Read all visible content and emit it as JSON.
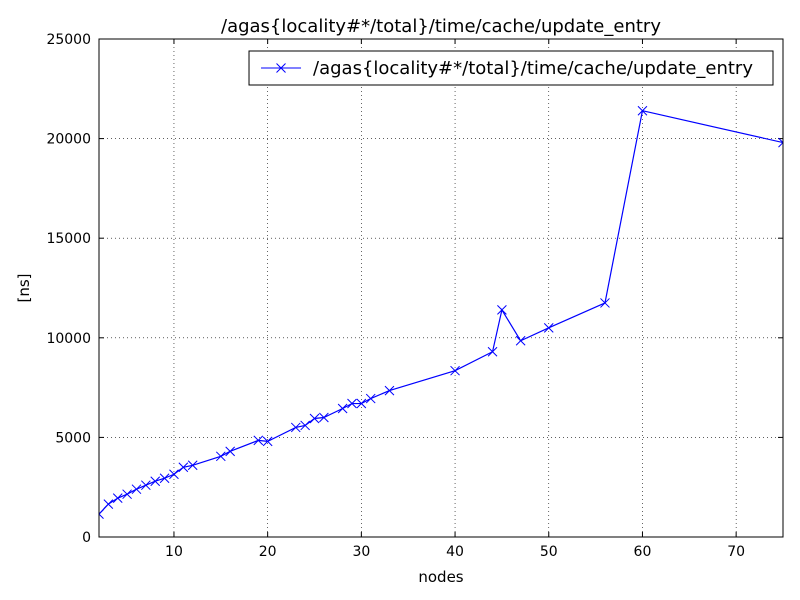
{
  "chart_data": {
    "type": "line",
    "title": "/agas{locality#*/total}/time/cache/update_entry",
    "xlabel": "nodes",
    "ylabel": "[ns]",
    "xlim": [
      2,
      75
    ],
    "ylim": [
      0,
      25000
    ],
    "xticks": [
      10,
      20,
      30,
      40,
      50,
      60,
      70
    ],
    "yticks": [
      0,
      5000,
      10000,
      15000,
      20000,
      25000
    ],
    "grid": true,
    "legend_position": "top-right",
    "series": [
      {
        "name": "/agas{locality#*/total}/time/cache/update_entry",
        "color": "#0000ff",
        "marker": "x",
        "x": [
          2,
          3,
          4,
          5,
          6,
          7,
          8,
          9,
          10,
          11,
          12,
          15,
          16,
          19,
          20,
          23,
          24,
          25,
          26,
          28,
          29,
          30,
          31,
          33,
          40,
          44,
          45,
          47,
          50,
          56,
          60,
          75
        ],
        "y": [
          1150,
          1650,
          1950,
          2150,
          2400,
          2600,
          2800,
          2950,
          3150,
          3500,
          3600,
          4050,
          4300,
          4850,
          4800,
          5500,
          5600,
          5950,
          6000,
          6450,
          6700,
          6700,
          6950,
          7350,
          8350,
          9300,
          11400,
          9850,
          10500,
          11750,
          21400,
          19800
        ]
      }
    ]
  }
}
